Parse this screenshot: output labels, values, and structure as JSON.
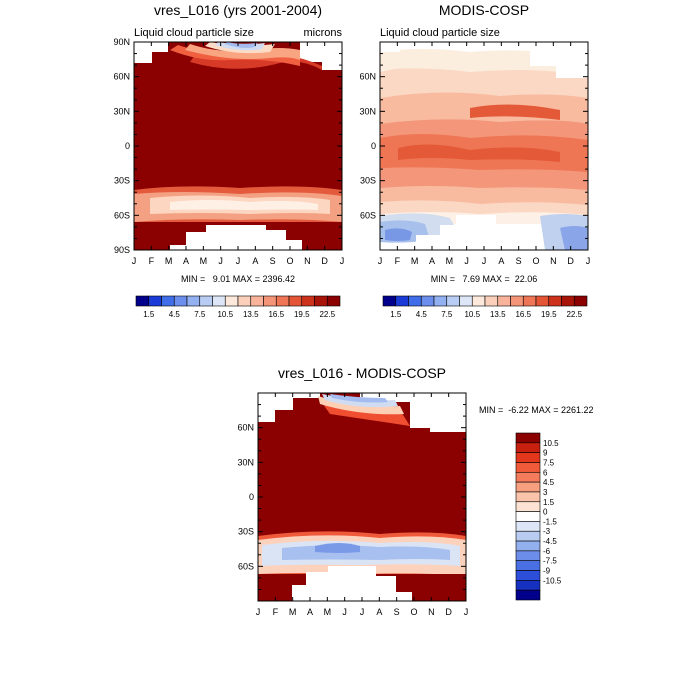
{
  "figure": {
    "panels": [
      {
        "title": "vres_L016 (yrs 2001-2004)",
        "left_label": "Liquid cloud particle size",
        "right_label": "microns",
        "stats": "MIN =   9.01 MAX = 2396.42",
        "colorbar_labels": [
          "1.5",
          "4.5",
          "7.5",
          "10.5",
          "13.5",
          "16.5",
          "19.5",
          "22.5"
        ]
      },
      {
        "title": "MODIS-COSP",
        "left_label": "Liquid cloud particle size",
        "right_label": "",
        "stats": "MIN =   7.69 MAX =  22.06",
        "colorbar_labels": [
          "1.5",
          "4.5",
          "7.5",
          "10.5",
          "13.5",
          "16.5",
          "19.5",
          "22.5"
        ]
      },
      {
        "title": "vres_L016 - MODIS-COSP",
        "left_label": "",
        "right_label": "",
        "stats": "MIN =  -6.22 MAX = 2261.22",
        "colorbar_labels": [
          "10.5",
          "9",
          "7.5",
          "6",
          "4.5",
          "3",
          "1.5",
          "0",
          "-1.5",
          "-3",
          "-4.5",
          "-6",
          "-7.5",
          "-9",
          "-10.5"
        ]
      }
    ]
  },
  "chart_data": [
    {
      "type": "heatmap",
      "title": "vres_L016 (yrs 2001-2004)",
      "subtitle": "Liquid cloud particle size",
      "units": "microns",
      "x_categories": [
        "J",
        "F",
        "M",
        "A",
        "M",
        "J",
        "J",
        "A",
        "S",
        "O",
        "N",
        "D",
        "J"
      ],
      "y_ticks": [
        "90N",
        "60N",
        "30N",
        "0",
        "30S",
        "60S",
        "90S"
      ],
      "y_tick_values": [
        90,
        60,
        30,
        0,
        -30,
        -60,
        -90
      ],
      "ylim": [
        -90,
        90
      ],
      "min": 9.01,
      "max": 2396.42,
      "colorbar_levels": [
        1.5,
        3,
        4.5,
        6,
        7.5,
        9,
        10.5,
        12,
        13.5,
        15,
        16.5,
        18,
        19.5,
        21,
        22.5
      ]
    },
    {
      "type": "heatmap",
      "title": "MODIS-COSP",
      "subtitle": "Liquid cloud particle size",
      "x_categories": [
        "J",
        "F",
        "M",
        "A",
        "M",
        "J",
        "J",
        "A",
        "S",
        "O",
        "N",
        "D",
        "J"
      ],
      "y_ticks": [
        "60N",
        "30N",
        "0",
        "30S",
        "60S"
      ],
      "y_tick_values": [
        60,
        30,
        0,
        -30,
        -60
      ],
      "ylim": [
        -90,
        90
      ],
      "min": 7.69,
      "max": 22.06,
      "colorbar_levels": [
        1.5,
        3,
        4.5,
        6,
        7.5,
        9,
        10.5,
        12,
        13.5,
        15,
        16.5,
        18,
        19.5,
        21,
        22.5
      ]
    },
    {
      "type": "heatmap",
      "title": "vres_L016 - MODIS-COSP",
      "x_categories": [
        "J",
        "F",
        "M",
        "A",
        "M",
        "J",
        "J",
        "A",
        "S",
        "O",
        "N",
        "D",
        "J"
      ],
      "y_ticks": [
        "60N",
        "30N",
        "0",
        "30S",
        "60S"
      ],
      "y_tick_values": [
        60,
        30,
        0,
        -30,
        -60
      ],
      "ylim": [
        -90,
        90
      ],
      "min": -6.22,
      "max": 2261.22,
      "colorbar_levels": [
        10.5,
        9,
        7.5,
        6,
        4.5,
        3,
        1.5,
        0,
        -1.5,
        -3,
        -4.5,
        -6,
        -7.5,
        -9,
        -10.5
      ]
    }
  ]
}
